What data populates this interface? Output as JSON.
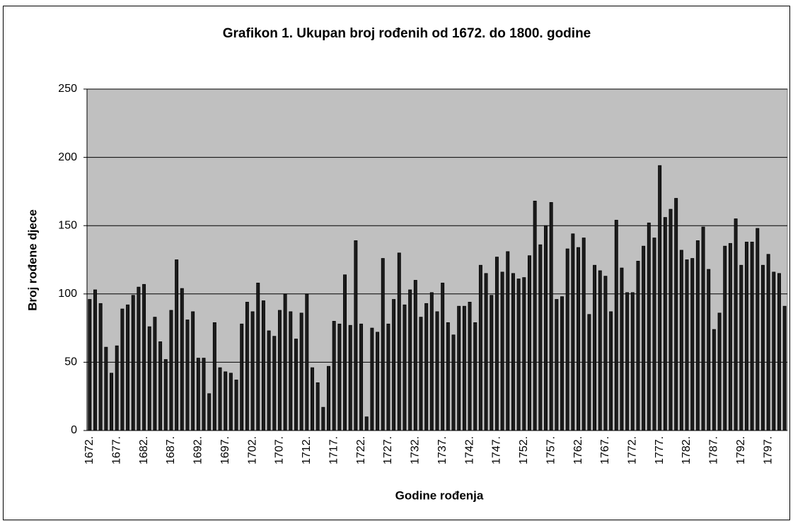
{
  "chart_data": {
    "type": "bar",
    "title": "Grafikon 1. Ukupan broj rođenih od 1672. do 1800. godine",
    "xlabel": "Godine rođenja",
    "ylabel": "Broj rođene djece",
    "categories": [
      "1672.",
      null,
      null,
      null,
      null,
      "1677.",
      null,
      null,
      null,
      null,
      "1682.",
      null,
      null,
      null,
      null,
      "1687.",
      null,
      null,
      null,
      null,
      "1692.",
      null,
      null,
      null,
      null,
      "1697.",
      null,
      null,
      null,
      null,
      "1702.",
      null,
      null,
      null,
      null,
      "1707.",
      null,
      null,
      null,
      null,
      "1712.",
      null,
      null,
      null,
      null,
      "1717.",
      null,
      null,
      null,
      null,
      "1722.",
      null,
      null,
      null,
      null,
      "1727.",
      null,
      null,
      null,
      null,
      "1732.",
      null,
      null,
      null,
      null,
      "1737.",
      null,
      null,
      null,
      null,
      "1742.",
      null,
      null,
      null,
      null,
      "1747.",
      null,
      null,
      null,
      null,
      "1752.",
      null,
      null,
      null,
      null,
      "1757.",
      null,
      null,
      null,
      null,
      "1762.",
      null,
      null,
      null,
      null,
      "1767.",
      null,
      null,
      null,
      null,
      "1772.",
      null,
      null,
      null,
      null,
      "1777.",
      null,
      null,
      null,
      null,
      "1782.",
      null,
      null,
      null,
      null,
      "1787.",
      null,
      null,
      null,
      null,
      "1792.",
      null,
      null,
      null,
      null,
      "1797.",
      null,
      null,
      null
    ],
    "values": [
      96,
      103,
      93,
      61,
      42,
      62,
      89,
      92,
      99,
      105,
      107,
      76,
      83,
      65,
      52,
      88,
      125,
      104,
      81,
      87,
      53,
      53,
      27,
      79,
      46,
      43,
      42,
      37,
      78,
      94,
      87,
      108,
      95,
      73,
      69,
      88,
      100,
      87,
      67,
      86,
      100,
      46,
      35,
      17,
      47,
      80,
      78,
      114,
      77,
      139,
      78,
      10,
      75,
      72,
      126,
      78,
      96,
      130,
      92,
      103,
      110,
      83,
      93,
      101,
      87,
      108,
      79,
      70,
      91,
      91,
      94,
      79,
      121,
      115,
      99,
      127,
      116,
      131,
      115,
      111,
      112,
      128,
      168,
      136,
      150,
      167,
      96,
      98,
      133,
      144,
      134,
      141,
      85,
      121,
      117,
      113,
      87,
      154,
      119,
      101,
      101,
      124,
      135,
      152,
      141,
      194,
      156,
      162,
      170,
      132,
      125,
      126,
      139,
      149,
      118,
      74,
      86,
      135,
      137,
      155,
      121,
      138,
      138,
      148,
      121,
      129,
      116,
      115,
      91
    ],
    "color": "#1c1c1c",
    "ylim": [
      0,
      250
    ],
    "yticks": [
      0,
      50,
      100,
      150,
      200,
      250
    ],
    "grid": true
  }
}
